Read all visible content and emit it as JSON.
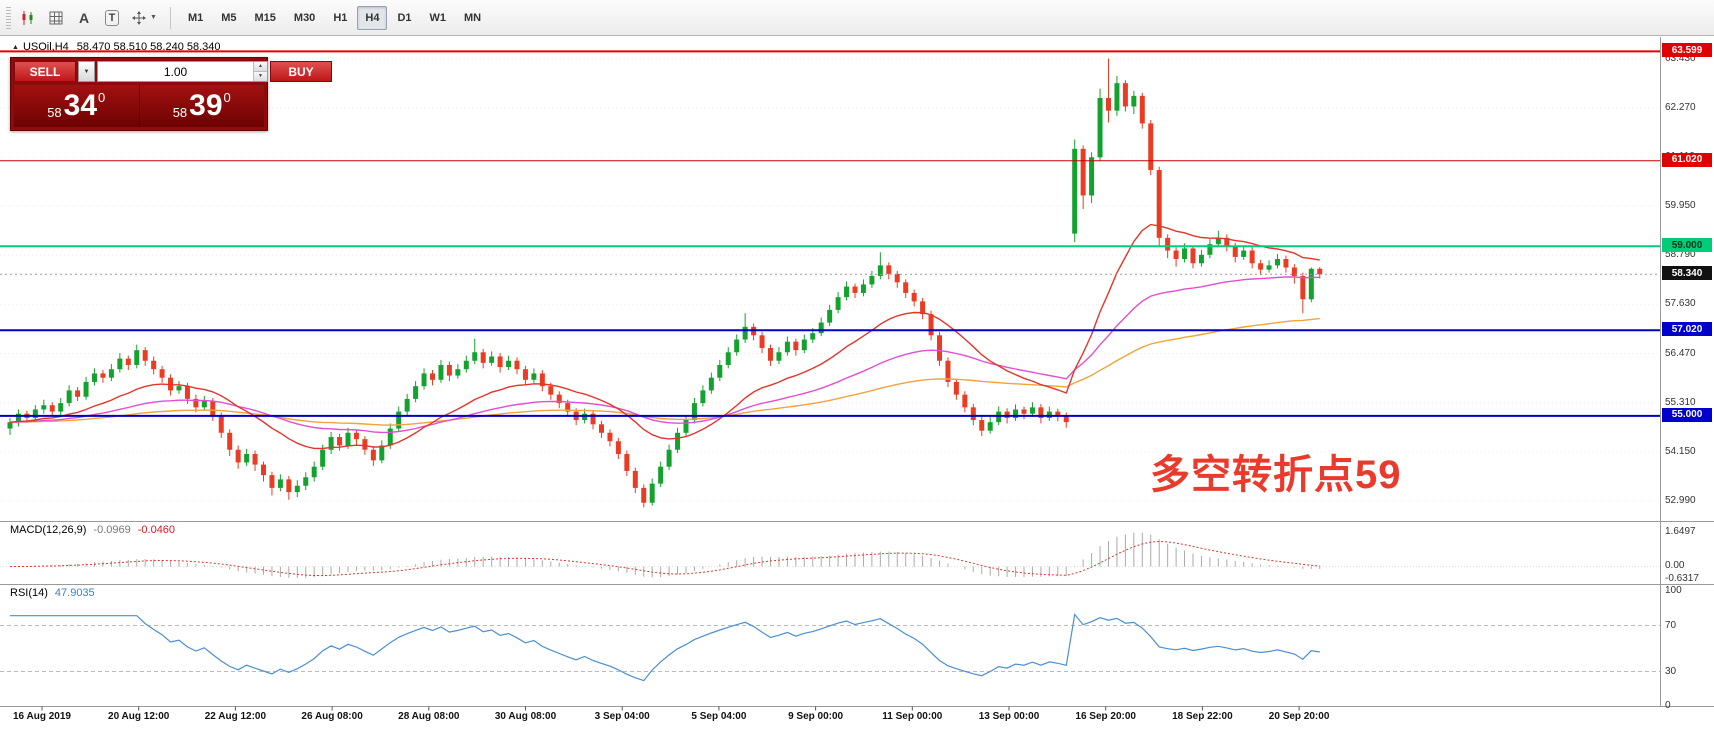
{
  "toolbar": {
    "timeframes": [
      "M1",
      "M5",
      "M15",
      "M30",
      "H1",
      "H4",
      "D1",
      "W1",
      "MN"
    ],
    "active_timeframe": "H4"
  },
  "icons": {
    "a_glyph": "A",
    "t_glyph": "T",
    "chevron_down": "▼",
    "spin_up": "▲",
    "spin_down": "▼",
    "marker": "▲"
  },
  "chart_header": {
    "symbol": "USOil,H4",
    "ohlc": "58.470 58.510 58.240 58.340"
  },
  "trade_panel": {
    "sell_label": "SELL",
    "buy_label": "BUY",
    "volume": "1.00",
    "bid": {
      "small": "58",
      "big": "34",
      "sup": "0"
    },
    "ask": {
      "small": "58",
      "big": "39",
      "sup": "0"
    }
  },
  "annotation": {
    "text": "多空转折点59",
    "color": "#e93a2c"
  },
  "levels": [
    {
      "price": 63.599,
      "color": "#e00000",
      "width": 2
    },
    {
      "price": 61.02,
      "color": "#cc0000",
      "width": 1
    },
    {
      "price": 59.0,
      "color": "#00cc7a",
      "width": 2
    },
    {
      "price": 57.02,
      "color": "#0000bb",
      "width": 2
    },
    {
      "price": 55.0,
      "color": "#0000bb",
      "width": 2
    }
  ],
  "price_axis": {
    "labels": [
      {
        "text": "63.430",
        "price": 63.43
      },
      {
        "text": "62.270",
        "price": 62.27
      },
      {
        "text": "61.110",
        "price": 61.11
      },
      {
        "text": "59.950",
        "price": 59.95
      },
      {
        "text": "58.790",
        "price": 58.79
      },
      {
        "text": "57.630",
        "price": 57.63
      },
      {
        "text": "56.470",
        "price": 56.47
      },
      {
        "text": "55.310",
        "price": 55.31
      },
      {
        "text": "54.150",
        "price": 54.15
      },
      {
        "text": "52.990",
        "price": 52.99
      }
    ],
    "badges": [
      {
        "text": "63.599",
        "price": 63.599,
        "bg": "#e00000",
        "fg": "#ffffff"
      },
      {
        "text": "61.020",
        "price": 61.02,
        "bg": "#e00000",
        "fg": "#ffffff"
      },
      {
        "text": "59.000",
        "price": 59.0,
        "bg": "#00cc7a",
        "fg": "#00331c"
      },
      {
        "text": "58.340",
        "price": 58.34,
        "bg": "#111111",
        "fg": "#ffffff"
      },
      {
        "text": "57.020",
        "price": 57.02,
        "bg": "#0000cc",
        "fg": "#ffffff"
      },
      {
        "text": "55.000",
        "price": 55.0,
        "bg": "#0000cc",
        "fg": "#ffffff"
      }
    ]
  },
  "macd": {
    "label": "MACD(12,26,9)",
    "main_value": "-0.0969",
    "signal_value": "-0.0460",
    "scale_top": "1.6497",
    "scale_zero": "0.00",
    "scale_bottom": "-0.6317",
    "histogram_color": "#aaaaaa",
    "signal_color": "#e2362a"
  },
  "rsi": {
    "label": "RSI(14)",
    "value": "47.9035",
    "scale": [
      "100",
      "70",
      "30",
      "0"
    ],
    "line_color": "#4a8fd4",
    "level_lines": [
      70,
      30
    ]
  },
  "chart_data": {
    "type": "candlestick",
    "title": "USOil H4",
    "symbol": "USOil",
    "timeframe": "H4",
    "current_price": 58.34,
    "colors": {
      "up": "#14a22e",
      "down": "#ea3b23"
    },
    "grid_prices": [
      63.43,
      62.27,
      61.11,
      59.95,
      58.79,
      57.63,
      56.47,
      55.31,
      54.15,
      52.99
    ],
    "indicators": [
      {
        "name": "ma-slow",
        "period": 110,
        "color": "#f0a43c"
      },
      {
        "name": "ma-medium",
        "period": 50,
        "color": "#e14fd2"
      },
      {
        "name": "ma-fast",
        "period": 20,
        "color": "#e2362a"
      }
    ],
    "x_labels": [
      "16 Aug 2019",
      "20 Aug 12:00",
      "22 Aug 12:00",
      "26 Aug 08:00",
      "28 Aug 08:00",
      "30 Aug 08:00",
      "3 Sep 04:00",
      "5 Sep 04:00",
      "9 Sep 00:00",
      "11 Sep 00:00",
      "13 Sep 00:00",
      "16 Sep 20:00",
      "18 Sep 22:00",
      "20 Sep 20:00"
    ],
    "ohlc": [
      [
        54.7,
        54.95,
        54.55,
        54.85
      ],
      [
        54.85,
        55.15,
        54.75,
        55.05
      ],
      [
        55.05,
        55.12,
        54.85,
        54.95
      ],
      [
        54.95,
        55.25,
        54.88,
        55.15
      ],
      [
        55.15,
        55.38,
        55.05,
        55.25
      ],
      [
        55.25,
        55.32,
        54.98,
        55.1
      ],
      [
        55.1,
        55.42,
        55.02,
        55.3
      ],
      [
        55.3,
        55.72,
        55.22,
        55.6
      ],
      [
        55.6,
        55.68,
        55.35,
        55.45
      ],
      [
        55.45,
        55.92,
        55.38,
        55.8
      ],
      [
        55.8,
        56.12,
        55.72,
        56.0
      ],
      [
        56.0,
        56.08,
        55.78,
        55.9
      ],
      [
        55.9,
        56.22,
        55.82,
        56.1
      ],
      [
        56.1,
        56.48,
        56.02,
        56.35
      ],
      [
        56.35,
        56.42,
        56.08,
        56.2
      ],
      [
        56.2,
        56.68,
        56.12,
        56.55
      ],
      [
        56.55,
        56.62,
        56.18,
        56.3
      ],
      [
        56.3,
        56.4,
        55.98,
        56.1
      ],
      [
        56.1,
        56.18,
        55.78,
        55.9
      ],
      [
        55.9,
        55.98,
        55.48,
        55.6
      ],
      [
        55.6,
        55.82,
        55.52,
        55.7
      ],
      [
        55.7,
        55.78,
        55.28,
        55.4
      ],
      [
        55.4,
        55.5,
        55.08,
        55.2
      ],
      [
        55.2,
        55.47,
        55.12,
        55.35
      ],
      [
        55.35,
        55.42,
        54.88,
        55.0
      ],
      [
        55.0,
        55.08,
        54.48,
        54.6
      ],
      [
        54.6,
        54.68,
        54.05,
        54.2
      ],
      [
        54.2,
        54.3,
        53.75,
        53.9
      ],
      [
        53.9,
        54.22,
        53.82,
        54.1
      ],
      [
        54.1,
        54.18,
        53.7,
        53.85
      ],
      [
        53.85,
        53.92,
        53.45,
        53.6
      ],
      [
        53.6,
        53.68,
        53.12,
        53.3
      ],
      [
        53.3,
        53.62,
        53.22,
        53.5
      ],
      [
        53.5,
        53.58,
        53.02,
        53.2
      ],
      [
        53.2,
        53.48,
        53.08,
        53.35
      ],
      [
        53.35,
        53.67,
        53.25,
        53.55
      ],
      [
        53.55,
        53.92,
        53.45,
        53.8
      ],
      [
        53.8,
        54.32,
        53.72,
        54.2
      ],
      [
        54.2,
        54.62,
        54.1,
        54.5
      ],
      [
        54.5,
        54.58,
        54.18,
        54.3
      ],
      [
        54.3,
        54.72,
        54.22,
        54.6
      ],
      [
        54.6,
        54.68,
        54.32,
        54.45
      ],
      [
        54.45,
        54.52,
        54.08,
        54.2
      ],
      [
        54.2,
        54.28,
        53.82,
        53.95
      ],
      [
        53.95,
        54.42,
        53.88,
        54.3
      ],
      [
        54.3,
        54.82,
        54.22,
        54.7
      ],
      [
        54.7,
        55.22,
        54.62,
        55.1
      ],
      [
        55.1,
        55.52,
        55.02,
        55.4
      ],
      [
        55.4,
        55.82,
        55.32,
        55.7
      ],
      [
        55.7,
        56.12,
        55.62,
        56.0
      ],
      [
        56.0,
        56.08,
        55.72,
        55.85
      ],
      [
        55.85,
        56.32,
        55.78,
        56.2
      ],
      [
        56.2,
        56.28,
        55.82,
        55.95
      ],
      [
        55.95,
        56.22,
        55.88,
        56.1
      ],
      [
        56.1,
        56.42,
        56.02,
        56.3
      ],
      [
        56.3,
        56.82,
        56.22,
        56.5
      ],
      [
        56.5,
        56.58,
        56.12,
        56.25
      ],
      [
        56.25,
        56.52,
        56.18,
        56.4
      ],
      [
        56.4,
        56.48,
        56.02,
        56.15
      ],
      [
        56.15,
        56.42,
        56.08,
        56.3
      ],
      [
        56.3,
        56.38,
        55.98,
        56.1
      ],
      [
        56.1,
        56.18,
        55.72,
        55.85
      ],
      [
        55.85,
        56.12,
        55.78,
        56.0
      ],
      [
        56.0,
        56.08,
        55.58,
        55.7
      ],
      [
        55.7,
        55.78,
        55.38,
        55.5
      ],
      [
        55.5,
        55.58,
        55.18,
        55.3
      ],
      [
        55.3,
        55.38,
        54.98,
        55.1
      ],
      [
        55.1,
        55.18,
        54.78,
        54.9
      ],
      [
        54.9,
        55.17,
        54.82,
        55.05
      ],
      [
        55.05,
        55.12,
        54.68,
        54.8
      ],
      [
        54.8,
        54.88,
        54.48,
        54.6
      ],
      [
        54.6,
        54.68,
        54.28,
        54.4
      ],
      [
        54.4,
        54.48,
        53.98,
        54.1
      ],
      [
        54.1,
        54.18,
        53.58,
        53.7
      ],
      [
        53.7,
        53.78,
        53.18,
        53.3
      ],
      [
        53.3,
        53.38,
        52.84,
        52.95
      ],
      [
        52.95,
        53.52,
        52.88,
        53.4
      ],
      [
        53.4,
        53.92,
        53.32,
        53.8
      ],
      [
        53.8,
        54.32,
        53.72,
        54.2
      ],
      [
        54.2,
        54.72,
        54.12,
        54.6
      ],
      [
        54.6,
        55.02,
        54.52,
        54.9
      ],
      [
        54.9,
        55.42,
        54.82,
        55.3
      ],
      [
        55.3,
        55.72,
        55.22,
        55.6
      ],
      [
        55.6,
        56.02,
        55.52,
        55.9
      ],
      [
        55.9,
        56.32,
        55.82,
        56.2
      ],
      [
        56.2,
        56.62,
        56.12,
        56.5
      ],
      [
        56.5,
        56.92,
        56.42,
        56.8
      ],
      [
        56.8,
        57.42,
        56.72,
        57.1
      ],
      [
        57.1,
        57.18,
        56.78,
        56.9
      ],
      [
        56.9,
        56.98,
        56.48,
        56.6
      ],
      [
        56.6,
        56.68,
        56.18,
        56.3
      ],
      [
        56.3,
        56.62,
        56.22,
        56.5
      ],
      [
        56.5,
        56.87,
        56.42,
        56.75
      ],
      [
        56.75,
        56.82,
        56.42,
        56.55
      ],
      [
        56.55,
        56.92,
        56.48,
        56.8
      ],
      [
        56.8,
        57.07,
        56.72,
        56.95
      ],
      [
        56.95,
        57.32,
        56.88,
        57.2
      ],
      [
        57.2,
        57.62,
        57.12,
        57.5
      ],
      [
        57.5,
        57.92,
        57.42,
        57.8
      ],
      [
        57.8,
        58.17,
        57.72,
        58.05
      ],
      [
        58.05,
        58.12,
        57.78,
        57.9
      ],
      [
        57.9,
        58.22,
        57.82,
        58.1
      ],
      [
        58.1,
        58.42,
        58.02,
        58.3
      ],
      [
        58.3,
        58.86,
        58.22,
        58.55
      ],
      [
        58.55,
        58.62,
        58.22,
        58.35
      ],
      [
        58.35,
        58.42,
        58.02,
        58.15
      ],
      [
        58.15,
        58.22,
        57.78,
        57.9
      ],
      [
        57.9,
        57.98,
        57.58,
        57.7
      ],
      [
        57.7,
        57.78,
        57.28,
        57.4
      ],
      [
        57.4,
        57.48,
        56.78,
        56.9
      ],
      [
        56.9,
        56.98,
        56.18,
        56.3
      ],
      [
        56.3,
        56.38,
        55.68,
        55.8
      ],
      [
        55.8,
        55.88,
        55.38,
        55.5
      ],
      [
        55.5,
        55.58,
        55.08,
        55.2
      ],
      [
        55.2,
        55.28,
        54.78,
        54.9
      ],
      [
        54.9,
        54.98,
        54.52,
        54.65
      ],
      [
        54.65,
        54.97,
        54.58,
        54.85
      ],
      [
        54.85,
        55.22,
        54.78,
        55.1
      ],
      [
        55.1,
        55.18,
        54.82,
        54.95
      ],
      [
        54.95,
        55.27,
        54.88,
        55.15
      ],
      [
        55.15,
        55.22,
        54.92,
        55.05
      ],
      [
        55.05,
        55.32,
        54.98,
        55.2
      ],
      [
        55.2,
        55.28,
        54.82,
        54.95
      ],
      [
        54.95,
        55.22,
        54.88,
        55.1
      ],
      [
        55.1,
        55.17,
        54.87,
        55.0
      ],
      [
        55.0,
        55.08,
        54.72,
        54.85
      ],
      [
        59.3,
        61.52,
        59.1,
        61.3
      ],
      [
        61.3,
        61.38,
        59.88,
        60.2
      ],
      [
        60.2,
        61.22,
        60.02,
        61.1
      ],
      [
        61.1,
        62.72,
        61.02,
        62.5
      ],
      [
        62.5,
        63.43,
        61.92,
        62.2
      ],
      [
        62.2,
        63.02,
        62.08,
        62.85
      ],
      [
        62.85,
        62.92,
        62.18,
        62.3
      ],
      [
        62.3,
        62.67,
        62.12,
        62.55
      ],
      [
        62.55,
        62.62,
        61.78,
        61.9
      ],
      [
        61.9,
        61.98,
        60.68,
        60.8
      ],
      [
        60.8,
        60.88,
        59.02,
        59.2
      ],
      [
        59.2,
        59.28,
        58.72,
        58.9
      ],
      [
        58.9,
        58.98,
        58.52,
        58.7
      ],
      [
        58.7,
        59.07,
        58.62,
        58.95
      ],
      [
        58.95,
        59.02,
        58.48,
        58.6
      ],
      [
        58.6,
        58.92,
        58.52,
        58.8
      ],
      [
        58.8,
        59.17,
        58.72,
        59.05
      ],
      [
        59.05,
        59.37,
        58.98,
        59.2
      ],
      [
        59.2,
        59.28,
        58.88,
        59.0
      ],
      [
        59.0,
        59.08,
        58.62,
        58.75
      ],
      [
        58.75,
        59.02,
        58.68,
        58.9
      ],
      [
        58.9,
        58.98,
        58.48,
        58.6
      ],
      [
        58.6,
        58.68,
        58.32,
        58.45
      ],
      [
        58.45,
        58.67,
        58.38,
        58.55
      ],
      [
        58.55,
        58.82,
        58.48,
        58.7
      ],
      [
        58.7,
        58.78,
        58.38,
        58.5
      ],
      [
        58.5,
        58.58,
        58.12,
        58.3
      ],
      [
        58.3,
        58.38,
        57.42,
        57.75
      ],
      [
        57.75,
        58.5,
        57.68,
        58.47
      ],
      [
        58.47,
        58.51,
        58.24,
        58.34
      ]
    ]
  }
}
